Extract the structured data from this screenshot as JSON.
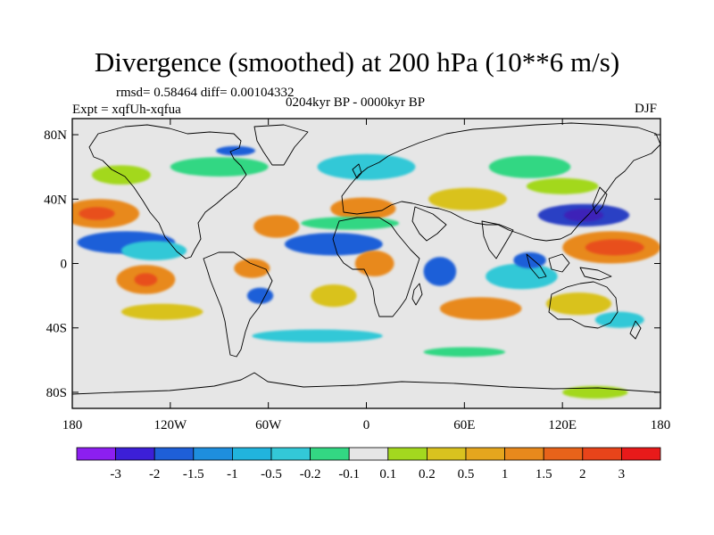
{
  "title": "Divergence (smoothed) at 200 hPa (10**6 m/s)",
  "stats": "rmsd= 0.58464 diff= 0.00104332",
  "experiment": "Expt = xqfUh-xqfua",
  "period": "0204kyr BP - 0000kyr BP",
  "season": "DJF",
  "map": {
    "projection": "cylindrical equidistant",
    "lon_range": [
      -180,
      180
    ],
    "lat_range": [
      -90,
      90
    ],
    "x_ticks": [
      {
        "lon": -180,
        "label": "180"
      },
      {
        "lon": -120,
        "label": "120W"
      },
      {
        "lon": -60,
        "label": "60W"
      },
      {
        "lon": 0,
        "label": "0"
      },
      {
        "lon": 60,
        "label": "60E"
      },
      {
        "lon": 120,
        "label": "120E"
      },
      {
        "lon": 180,
        "label": "180"
      }
    ],
    "y_ticks": [
      {
        "lat": 80,
        "label": "80N"
      },
      {
        "lat": 40,
        "label": "40N"
      },
      {
        "lat": 0,
        "label": "0"
      },
      {
        "lat": -40,
        "label": "40S"
      },
      {
        "lat": -80,
        "label": "80S"
      }
    ],
    "background_color": "#e6e6e6",
    "features": [
      {
        "name": "n-pacific-orange",
        "lon": -163,
        "lat": 31,
        "rx": 24,
        "ry": 9,
        "color": "#e8891c"
      },
      {
        "name": "n-pacific-red",
        "lon": -165,
        "lat": 31,
        "rx": 11,
        "ry": 4,
        "color": "#e8501a"
      },
      {
        "name": "w-atlantic-orange",
        "lon": -55,
        "lat": 23,
        "rx": 14,
        "ry": 7,
        "color": "#e8891c"
      },
      {
        "name": "n-africa-orange",
        "lon": -2,
        "lat": 34,
        "rx": 20,
        "ry": 7,
        "color": "#e8891c"
      },
      {
        "name": "asia-yellow",
        "lon": 62,
        "lat": 40,
        "rx": 24,
        "ry": 7,
        "color": "#d9c21f"
      },
      {
        "name": "trop-pacific-blue",
        "lon": -147,
        "lat": 13,
        "rx": 30,
        "ry": 7,
        "color": "#1e5fd8"
      },
      {
        "name": "trop-pacific-cyan",
        "lon": -130,
        "lat": 8,
        "rx": 20,
        "ry": 6,
        "color": "#33c8d7"
      },
      {
        "name": "c-atlantic-blue",
        "lon": -20,
        "lat": 12,
        "rx": 30,
        "ry": 7,
        "color": "#1e5fd8"
      },
      {
        "name": "w-pacific-blue",
        "lon": 133,
        "lat": 30,
        "rx": 28,
        "ry": 7,
        "color": "#2b3fc4"
      },
      {
        "name": "w-pacific-purple",
        "lon": 133,
        "lat": 30,
        "rx": 12,
        "ry": 4,
        "color": "#3e20b8"
      },
      {
        "name": "w-pacific-orange",
        "lon": 150,
        "lat": 10,
        "rx": 30,
        "ry": 10,
        "color": "#e8891c"
      },
      {
        "name": "w-pacific-red",
        "lon": 152,
        "lat": 10,
        "rx": 18,
        "ry": 5,
        "color": "#e8501a"
      },
      {
        "name": "s-pacific-orange",
        "lon": -135,
        "lat": -10,
        "rx": 18,
        "ry": 9,
        "color": "#e8891c"
      },
      {
        "name": "s-pacific-red",
        "lon": -135,
        "lat": -10,
        "rx": 7,
        "ry": 4,
        "color": "#e8501a"
      },
      {
        "name": "s-america-orange",
        "lon": -70,
        "lat": -3,
        "rx": 11,
        "ry": 6,
        "color": "#e8891c"
      },
      {
        "name": "africa-orange",
        "lon": 5,
        "lat": 0,
        "rx": 12,
        "ry": 8,
        "color": "#e8891c"
      },
      {
        "name": "s-atlantic-yellow",
        "lon": -20,
        "lat": -20,
        "rx": 14,
        "ry": 7,
        "color": "#d9c21f"
      },
      {
        "name": "e-africa-blue",
        "lon": 45,
        "lat": -5,
        "rx": 10,
        "ry": 9,
        "color": "#1e5fd8"
      },
      {
        "name": "indian-ocean-blue",
        "lon": 95,
        "lat": -8,
        "rx": 22,
        "ry": 8,
        "color": "#33c8d7"
      },
      {
        "name": "indonesia-blue",
        "lon": 100,
        "lat": 2,
        "rx": 10,
        "ry": 5,
        "color": "#1e5fd8"
      },
      {
        "name": "s-indian-orange",
        "lon": 70,
        "lat": -28,
        "rx": 25,
        "ry": 7,
        "color": "#e8891c"
      },
      {
        "name": "s-pacific-yellow",
        "lon": -125,
        "lat": -30,
        "rx": 25,
        "ry": 5,
        "color": "#d9c21f"
      },
      {
        "name": "austral-yellow",
        "lon": 130,
        "lat": -25,
        "rx": 20,
        "ry": 7,
        "color": "#d9c21f"
      },
      {
        "name": "austral-cyan",
        "lon": 155,
        "lat": -35,
        "rx": 15,
        "ry": 5,
        "color": "#33c8d7"
      },
      {
        "name": "s-america-blue",
        "lon": -65,
        "lat": -20,
        "rx": 8,
        "ry": 5,
        "color": "#1e5fd8"
      },
      {
        "name": "s-ocean-cyan",
        "lon": -30,
        "lat": -45,
        "rx": 40,
        "ry": 4,
        "color": "#33c8d7"
      },
      {
        "name": "s-ocean-green",
        "lon": 60,
        "lat": -55,
        "rx": 25,
        "ry": 3,
        "color": "#33d783"
      },
      {
        "name": "antarctic-yellow",
        "lon": 140,
        "lat": -80,
        "rx": 20,
        "ry": 4,
        "color": "#a3d81f"
      },
      {
        "name": "arctic-green",
        "lon": -90,
        "lat": 60,
        "rx": 30,
        "ry": 6,
        "color": "#33d783"
      },
      {
        "name": "arctic-blue",
        "lon": -80,
        "lat": 70,
        "rx": 12,
        "ry": 3,
        "color": "#1e5fd8"
      },
      {
        "name": "n-atlantic-green",
        "lon": 0,
        "lat": 60,
        "rx": 30,
        "ry": 8,
        "color": "#33c8d7"
      },
      {
        "name": "siberia-green",
        "lon": 100,
        "lat": 60,
        "rx": 25,
        "ry": 7,
        "color": "#33d783"
      },
      {
        "name": "siberia-yellow",
        "lon": 120,
        "lat": 48,
        "rx": 22,
        "ry": 5,
        "color": "#a3d81f"
      },
      {
        "name": "n-america-yellow",
        "lon": -150,
        "lat": 55,
        "rx": 18,
        "ry": 6,
        "color": "#a3d81f"
      },
      {
        "name": "c-atlantic-green",
        "lon": -10,
        "lat": 25,
        "rx": 30,
        "ry": 4,
        "color": "#33d783"
      }
    ]
  },
  "colorbar": {
    "colors": [
      "#8c1ff0",
      "#3c1fd7",
      "#1e5fd8",
      "#1e8ede",
      "#21b4dd",
      "#33c8d7",
      "#33d783",
      "#e6e6e6",
      "#a3d81f",
      "#d9c21f",
      "#e5a61e",
      "#e8891c",
      "#e8631a",
      "#e8441a",
      "#e81a1a"
    ],
    "labels": [
      "-3",
      "-2",
      "-1.5",
      "-1",
      "-0.5",
      "-0.2",
      "-0.1",
      "0.1",
      "0.2",
      "0.5",
      "1",
      "1.5",
      "2",
      "3"
    ]
  }
}
